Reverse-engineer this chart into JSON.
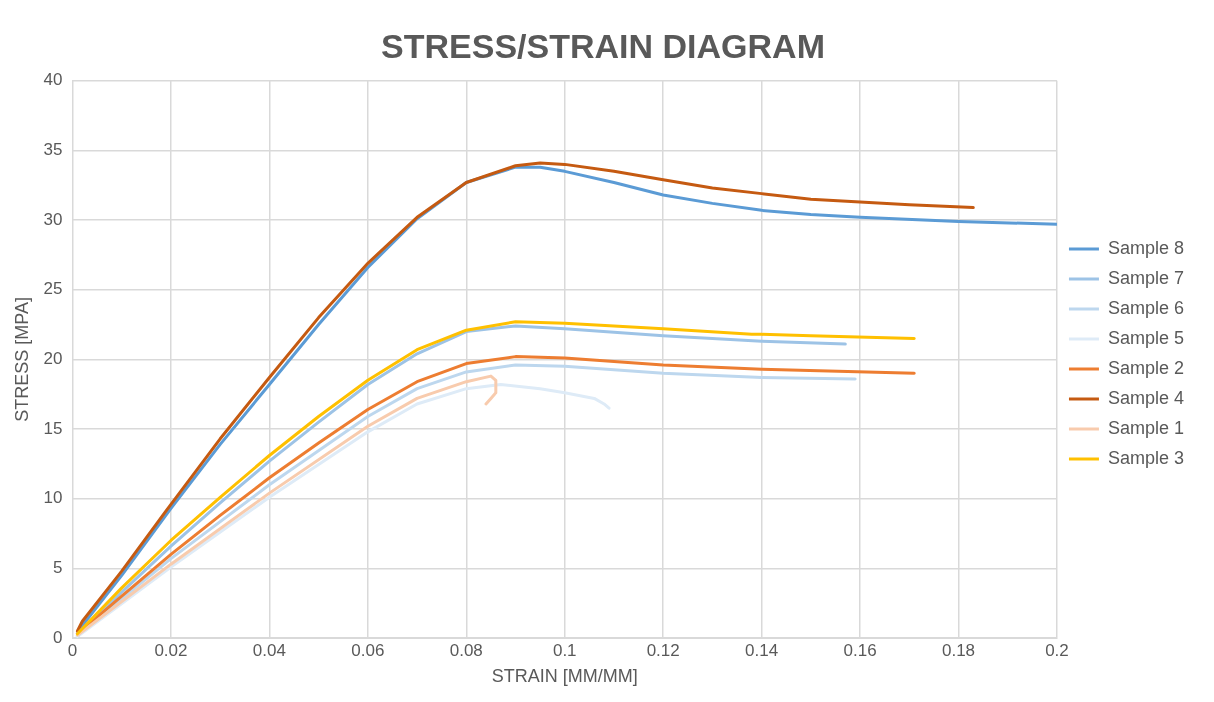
{
  "chart_data": {
    "type": "line",
    "title": "STRESS/STRAIN DIAGRAM",
    "xlabel": "STRAIN [MM/MM]",
    "ylabel": "STRESS [MPA]",
    "xlim": [
      0,
      0.2
    ],
    "xticks": [
      0,
      0.02,
      0.04,
      0.06,
      0.08,
      0.1,
      0.12,
      0.14,
      0.16,
      0.18,
      0.2
    ],
    "ylim": [
      0,
      40
    ],
    "yticks": [
      0,
      5,
      10,
      15,
      20,
      25,
      30,
      35,
      40
    ],
    "grid": true,
    "legend": "right",
    "marker": "none",
    "line_style": "solid",
    "series": [
      {
        "name": "Sample 8",
        "color": "#5b9bd5",
        "x": [
          0.001,
          0.002,
          0.01,
          0.02,
          0.03,
          0.04,
          0.05,
          0.06,
          0.07,
          0.08,
          0.09,
          0.095,
          0.1,
          0.11,
          0.12,
          0.13,
          0.14,
          0.15,
          0.16,
          0.18,
          0.2
        ],
        "values": [
          0.3,
          0.9,
          4.5,
          9.3,
          13.9,
          18.2,
          22.5,
          26.6,
          30.1,
          32.7,
          33.8,
          33.8,
          33.5,
          32.7,
          31.8,
          31.2,
          30.7,
          30.4,
          30.2,
          29.9,
          29.7
        ]
      },
      {
        "name": "Sample 7",
        "color": "#9dc3e6",
        "x": [
          0.001,
          0.01,
          0.02,
          0.03,
          0.04,
          0.05,
          0.06,
          0.07,
          0.08,
          0.09,
          0.1,
          0.12,
          0.14,
          0.157
        ],
        "values": [
          0.1,
          3.3,
          6.6,
          9.7,
          12.7,
          15.5,
          18.2,
          20.4,
          22,
          22.4,
          22.2,
          21.7,
          21.3,
          21.1
        ]
      },
      {
        "name": "Sample 6",
        "color": "#bdd7ee",
        "x": [
          0.001,
          0.02,
          0.04,
          0.06,
          0.07,
          0.08,
          0.09,
          0.1,
          0.12,
          0.14,
          0.159
        ],
        "values": [
          0.2,
          5.7,
          11,
          15.9,
          17.9,
          19.1,
          19.6,
          19.5,
          19,
          18.7,
          18.6
        ]
      },
      {
        "name": "Sample 5",
        "color": "#deebf7",
        "x": [
          0.001,
          0.02,
          0.04,
          0.06,
          0.07,
          0.08,
          0.087,
          0.095,
          0.1,
          0.106,
          0.108,
          0.109
        ],
        "values": [
          0.1,
          5.1,
          10.1,
          14.8,
          16.8,
          17.9,
          18.2,
          17.9,
          17.6,
          17.2,
          16.8,
          16.5
        ]
      },
      {
        "name": "Sample 2",
        "color": "#ed7d31",
        "x": [
          0.001,
          0.01,
          0.02,
          0.03,
          0.04,
          0.05,
          0.06,
          0.07,
          0.08,
          0.09,
          0.1,
          0.12,
          0.14,
          0.171
        ],
        "values": [
          0.3,
          3,
          6,
          8.8,
          11.5,
          14,
          16.4,
          18.4,
          19.7,
          20.2,
          20.1,
          19.6,
          19.3,
          19
        ]
      },
      {
        "name": "Sample 4",
        "color": "#c55a11",
        "x": [
          0.001,
          0.002,
          0.01,
          0.02,
          0.03,
          0.04,
          0.05,
          0.06,
          0.07,
          0.08,
          0.09,
          0.095,
          0.1,
          0.11,
          0.12,
          0.13,
          0.14,
          0.15,
          0.16,
          0.17,
          0.183
        ],
        "values": [
          0.5,
          1.2,
          4.8,
          9.6,
          14.3,
          18.7,
          23,
          26.9,
          30.2,
          32.7,
          33.9,
          34.1,
          34,
          33.5,
          32.9,
          32.3,
          31.9,
          31.5,
          31.3,
          31.1,
          30.9
        ]
      },
      {
        "name": "Sample 1",
        "color": "#f8cbad",
        "x": [
          0.001,
          0.02,
          0.04,
          0.06,
          0.07,
          0.08,
          0.085,
          0.086,
          0.086,
          0.085,
          0.084
        ],
        "values": [
          0.2,
          5.3,
          10.4,
          15.2,
          17.2,
          18.4,
          18.8,
          18.5,
          17.6,
          17.2,
          16.8
        ]
      },
      {
        "name": "Sample 3",
        "color": "#ffc000",
        "x": [
          0.001,
          0.01,
          0.02,
          0.03,
          0.04,
          0.05,
          0.06,
          0.07,
          0.08,
          0.09,
          0.1,
          0.12,
          0.138,
          0.14,
          0.15,
          0.171
        ],
        "values": [
          0.3,
          3.6,
          7,
          10.1,
          13.1,
          15.9,
          18.5,
          20.7,
          22.1,
          22.7,
          22.6,
          22.2,
          21.8,
          21.8,
          21.7,
          21.5
        ]
      }
    ]
  }
}
